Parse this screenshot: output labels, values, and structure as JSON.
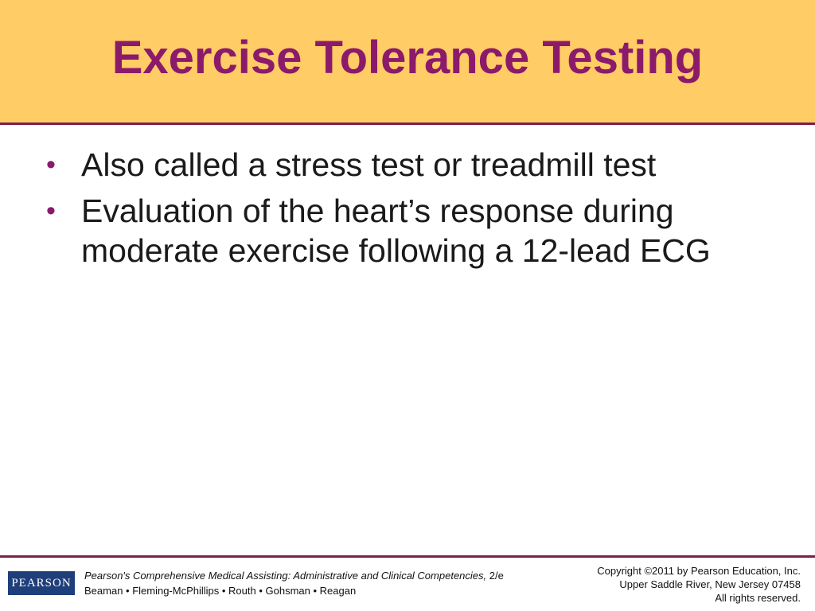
{
  "slide": {
    "title": "Exercise Tolerance Testing",
    "bullets": [
      {
        "text": "Also called a stress test or treadmill test"
      },
      {
        "text": "Evaluation of the heart’s response during moderate exercise following a 12-lead ECG"
      }
    ]
  },
  "footer": {
    "logo_text": "PEARSON",
    "book_title": "Pearson's Comprehensive Medical Assisting: Administrative and Clinical Competencies,",
    "edition": "2/e",
    "authors": "Beaman • Fleming-McPhillips • Routh • Gohsman • Reagan",
    "copyright_line1": "Copyright ©2011 by Pearson Education, Inc.",
    "copyright_line2": "Upper Saddle River, New Jersey 07458",
    "copyright_line3": "All rights reserved."
  },
  "colors": {
    "header_bg": "#ffcc66",
    "title": "#8b1a6b",
    "rule": "#7a1f4d",
    "logo_bg": "#1f3f7a"
  }
}
